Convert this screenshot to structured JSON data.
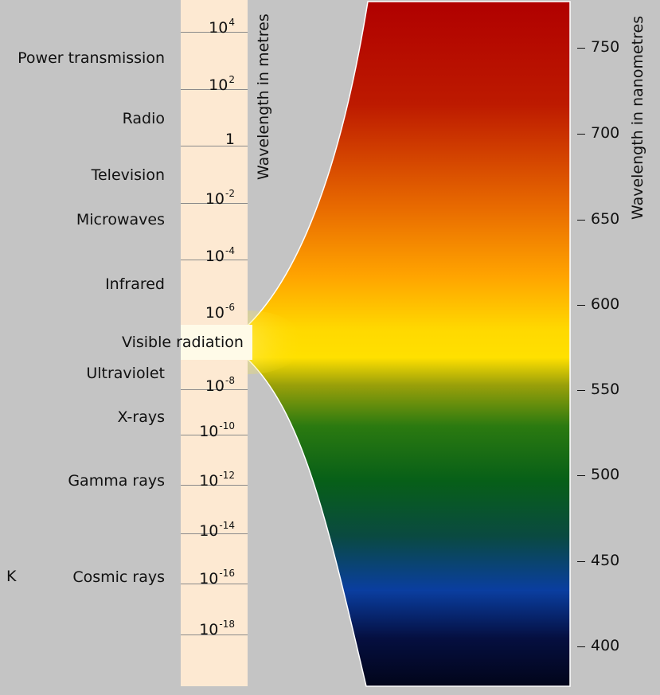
{
  "bands": [
    {
      "name": "Power transmission"
    },
    {
      "name": "Radio"
    },
    {
      "name": "Television"
    },
    {
      "name": "Microwaves"
    },
    {
      "name": "Infrared"
    },
    {
      "name": "Ultraviolet"
    },
    {
      "name": "X-rays"
    },
    {
      "name": "Gamma rays"
    },
    {
      "name": "Cosmic rays"
    }
  ],
  "visible_label": "Visible radiation",
  "stray_letter": "K",
  "metre_scale": {
    "title": "Wavelength in metres",
    "labels": [
      {
        "base": "10",
        "exp": "4"
      },
      {
        "base": "10",
        "exp": "2"
      },
      {
        "base": "1",
        "exp": ""
      },
      {
        "base": "10",
        "exp": "-2"
      },
      {
        "base": "10",
        "exp": "-4"
      },
      {
        "base": "10",
        "exp": "-6"
      },
      {
        "base": "10",
        "exp": "-8"
      },
      {
        "base": "10",
        "exp": "-10"
      },
      {
        "base": "10",
        "exp": "-12"
      },
      {
        "base": "10",
        "exp": "-14"
      },
      {
        "base": "10",
        "exp": "-16"
      },
      {
        "base": "10",
        "exp": "-18"
      }
    ]
  },
  "nanometre_scale": {
    "title": "Wavelength in nanometres",
    "ticks": [
      "750",
      "700",
      "650",
      "600",
      "550",
      "500",
      "450",
      "400"
    ]
  },
  "colors": {
    "background": "#c4c4c4",
    "scale_column": "#fde9d2",
    "spectrum_red": "#b00000",
    "spectrum_orange": "#ff8c00",
    "spectrum_yellow": "#ffe000",
    "spectrum_green": "#0a6018",
    "spectrum_blue": "#0a3ea0",
    "spectrum_dark": "#02051a"
  }
}
